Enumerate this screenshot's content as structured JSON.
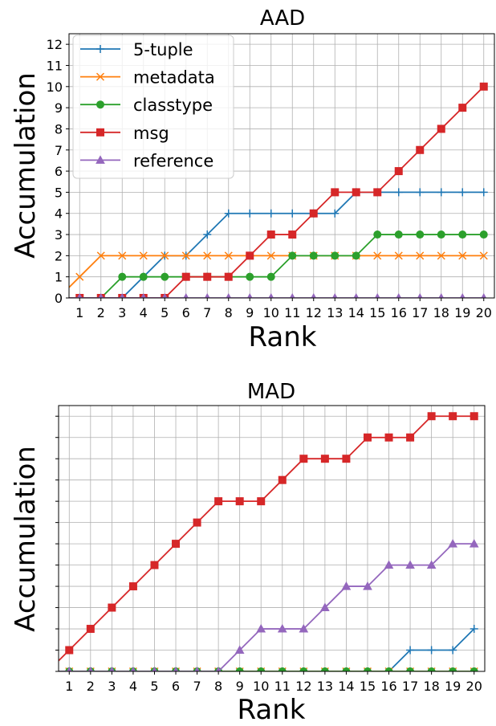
{
  "chart_data": [
    {
      "type": "line",
      "title": "AAD",
      "xlabel": "Rank",
      "ylabel": "Accumulation",
      "x": [
        1,
        2,
        3,
        4,
        5,
        6,
        7,
        8,
        9,
        10,
        11,
        12,
        13,
        14,
        15,
        16,
        17,
        18,
        19,
        20
      ],
      "xlim": [
        0.5,
        20.5
      ],
      "ylim": [
        0,
        12.5
      ],
      "yticks": [
        0,
        1,
        2,
        3,
        4,
        5,
        6,
        7,
        8,
        9,
        10,
        11,
        12
      ],
      "show_ytick_labels": true,
      "grid": true,
      "legend": "top-left",
      "series": [
        {
          "name": "5-tuple",
          "color": "#1f77b4",
          "marker": "plus",
          "values": [
            0,
            0,
            0,
            1,
            2,
            2,
            3,
            4,
            4,
            4,
            4,
            4,
            4,
            5,
            5,
            5,
            5,
            5,
            5,
            5
          ]
        },
        {
          "name": "metadata",
          "color": "#ff7f0e",
          "marker": "x",
          "values": [
            1,
            2,
            2,
            2,
            2,
            2,
            2,
            2,
            2,
            2,
            2,
            2,
            2,
            2,
            2,
            2,
            2,
            2,
            2,
            2
          ]
        },
        {
          "name": "classtype",
          "color": "#2ca02c",
          "marker": "circle",
          "values": [
            0,
            0,
            1,
            1,
            1,
            1,
            1,
            1,
            1,
            1,
            2,
            2,
            2,
            2,
            3,
            3,
            3,
            3,
            3,
            3
          ]
        },
        {
          "name": "msg",
          "color": "#d62728",
          "marker": "square",
          "values": [
            0,
            0,
            0,
            0,
            0,
            1,
            1,
            1,
            2,
            3,
            3,
            4,
            5,
            5,
            5,
            6,
            7,
            8,
            9,
            10
          ]
        },
        {
          "name": "reference",
          "color": "#9467bd",
          "marker": "triangle",
          "values": [
            0,
            0,
            0,
            0,
            0,
            0,
            0,
            0,
            0,
            0,
            0,
            0,
            0,
            0,
            0,
            0,
            0,
            0,
            0,
            0
          ]
        }
      ]
    },
    {
      "type": "line",
      "title": "MAD",
      "xlabel": "Rank",
      "ylabel": "Accumulation",
      "x": [
        1,
        2,
        3,
        4,
        5,
        6,
        7,
        8,
        9,
        10,
        11,
        12,
        13,
        14,
        15,
        16,
        17,
        18,
        19,
        20
      ],
      "xlim": [
        0.5,
        20.5
      ],
      "ylim": [
        0,
        12.5
      ],
      "yticks": [
        0,
        1,
        2,
        3,
        4,
        5,
        6,
        7,
        8,
        9,
        10,
        11,
        12
      ],
      "show_ytick_labels": false,
      "grid": true,
      "series": [
        {
          "name": "5-tuple",
          "color": "#1f77b4",
          "marker": "plus",
          "values": [
            0,
            0,
            0,
            0,
            0,
            0,
            0,
            0,
            0,
            0,
            0,
            0,
            0,
            0,
            0,
            0,
            1,
            1,
            1,
            2
          ]
        },
        {
          "name": "metadata",
          "color": "#ff7f0e",
          "marker": "x",
          "values": [
            0,
            0,
            0,
            0,
            0,
            0,
            0,
            0,
            0,
            0,
            0,
            0,
            0,
            0,
            0,
            0,
            0,
            0,
            0,
            0
          ]
        },
        {
          "name": "classtype",
          "color": "#2ca02c",
          "marker": "circle",
          "values": [
            0,
            0,
            0,
            0,
            0,
            0,
            0,
            0,
            0,
            0,
            0,
            0,
            0,
            0,
            0,
            0,
            0,
            0,
            0,
            0
          ]
        },
        {
          "name": "msg",
          "color": "#d62728",
          "marker": "square",
          "values": [
            1,
            2,
            3,
            4,
            5,
            6,
            7,
            8,
            8,
            8,
            9,
            10,
            10,
            10,
            11,
            11,
            11,
            12,
            12,
            12
          ]
        },
        {
          "name": "reference",
          "color": "#9467bd",
          "marker": "triangle",
          "values": [
            0,
            0,
            0,
            0,
            0,
            0,
            0,
            0,
            1,
            2,
            2,
            2,
            3,
            4,
            4,
            5,
            5,
            5,
            6,
            6
          ]
        }
      ]
    }
  ]
}
